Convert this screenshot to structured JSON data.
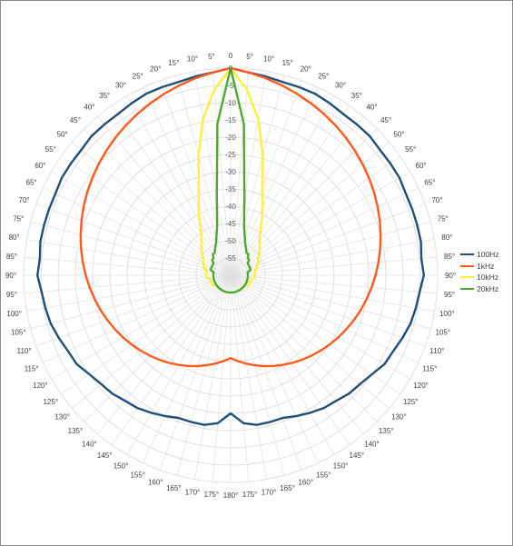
{
  "chart_data": {
    "type": "polar-line",
    "angle_unit": "degrees",
    "angle_tick_step": 5,
    "angle_labels": [
      "0",
      "5°",
      "10°",
      "15°",
      "20°",
      "25°",
      "30°",
      "35°",
      "40°",
      "45°",
      "50°",
      "55°",
      "60°",
      "65°",
      "70°",
      "75°",
      "80°",
      "85°",
      "90°",
      "95°",
      "100°",
      "105°",
      "110°",
      "115°",
      "120°",
      "125°",
      "130°",
      "135°",
      "140°",
      "145°",
      "150°",
      "155°",
      "160°",
      "165°",
      "170°",
      "175°",
      "180°"
    ],
    "radial_range": [
      -60,
      0
    ],
    "radial_ticks": [
      0,
      -5,
      -10,
      -15,
      -20,
      -25,
      -30,
      -35,
      -40,
      -45,
      -50,
      -55
    ],
    "radial_tick_labels": [
      "0",
      "-5",
      "-10",
      "-15",
      "-20",
      "-25",
      "-30",
      "-35",
      "-40",
      "-45",
      "-50",
      "-55"
    ],
    "angles": [
      0,
      5,
      10,
      15,
      20,
      25,
      30,
      35,
      40,
      45,
      50,
      55,
      60,
      65,
      70,
      75,
      80,
      85,
      90,
      95,
      100,
      105,
      110,
      115,
      120,
      125,
      130,
      135,
      140,
      145,
      150,
      155,
      160,
      165,
      170,
      175,
      180
    ],
    "series": [
      {
        "name": "100Hz",
        "color": "#1f4e79",
        "values": [
          0,
          -1,
          -1.5,
          -2,
          -2,
          -2,
          -2.5,
          -3,
          -3,
          -3,
          -3.5,
          -3.5,
          -3.5,
          -4,
          -4,
          -4,
          -4,
          -4.5,
          -4,
          -5,
          -5.5,
          -6,
          -7,
          -8,
          -8.5,
          -10,
          -11,
          -11.5,
          -12.5,
          -13,
          -14,
          -15,
          -16,
          -16,
          -16,
          -17,
          -20
        ]
      },
      {
        "name": "1kHz",
        "color": "#ff5a1e",
        "values": [
          0,
          -1,
          -2,
          -3,
          -4,
          -5,
          -6,
          -7,
          -8,
          -9,
          -10,
          -11,
          -12,
          -13,
          -14,
          -15,
          -16,
          -17,
          -18,
          -19,
          -20,
          -21,
          -22,
          -23,
          -24,
          -25,
          -26,
          -27,
          -28,
          -29,
          -30,
          -31,
          -32,
          -33,
          -34,
          -35,
          -36
        ]
      },
      {
        "name": "10kHz",
        "color": "#ffee40",
        "values": [
          0,
          -6,
          -14,
          -24,
          -33,
          -38,
          -42,
          -45,
          -47,
          -48,
          -49,
          -50,
          -51,
          -51,
          -52,
          -52,
          -53,
          -53,
          -53,
          -53,
          -54,
          -54,
          -54,
          -54,
          -54,
          -55,
          -55,
          -55,
          -55,
          -55,
          -55,
          -55,
          -55,
          -55,
          -55,
          -55,
          -55
        ]
      },
      {
        "name": "20kHz",
        "color": "#4ea72e",
        "values": [
          0,
          -16,
          -37,
          -45,
          -48,
          -50,
          -51,
          -52,
          -52,
          -53,
          -53,
          -54,
          -54,
          -54,
          -54,
          -54,
          -55,
          -55,
          -55,
          -55,
          -55,
          -55,
          -55,
          -55,
          -55,
          -55,
          -55,
          -55,
          -55,
          -55,
          -55,
          -55,
          -55,
          -55,
          -55,
          -55,
          -55
        ]
      }
    ],
    "grid": true,
    "legend": "right"
  }
}
